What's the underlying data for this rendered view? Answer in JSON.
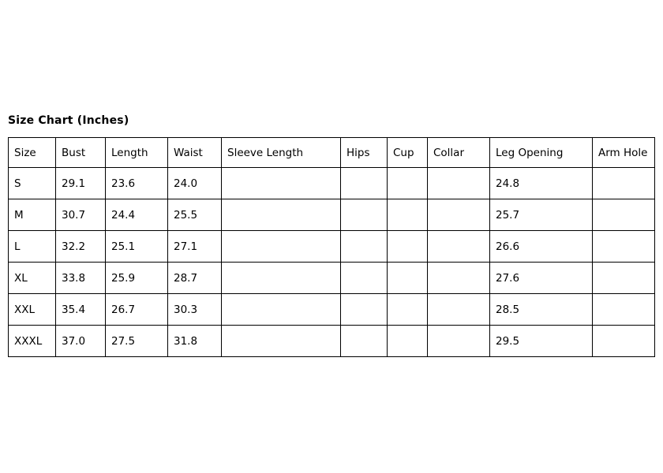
{
  "chart_data": {
    "type": "table",
    "title": "Size Chart (Inches)",
    "units": "Inches",
    "columns": [
      "Size",
      "Bust",
      "Length",
      "Waist",
      "Sleeve Length",
      "Hips",
      "Cup",
      "Collar",
      "Leg Opening",
      "Arm Hole"
    ],
    "rows": [
      [
        "S",
        "29.1",
        "23.6",
        "24.0",
        "",
        "",
        "",
        "",
        "24.8",
        ""
      ],
      [
        "M",
        "30.7",
        "24.4",
        "25.5",
        "",
        "",
        "",
        "",
        "25.7",
        ""
      ],
      [
        "L",
        "32.2",
        "25.1",
        "27.1",
        "",
        "",
        "",
        "",
        "26.6",
        ""
      ],
      [
        "XL",
        "33.8",
        "25.9",
        "28.7",
        "",
        "",
        "",
        "",
        "27.6",
        ""
      ],
      [
        "XXL",
        "35.4",
        "26.7",
        "30.3",
        "",
        "",
        "",
        "",
        "28.5",
        ""
      ],
      [
        "XXXL",
        "37.0",
        "27.5",
        "31.8",
        "",
        "",
        "",
        "",
        "29.5",
        ""
      ]
    ]
  },
  "colors": {
    "background": "#ffffff",
    "text": "#000000",
    "table_border": "#000000"
  }
}
